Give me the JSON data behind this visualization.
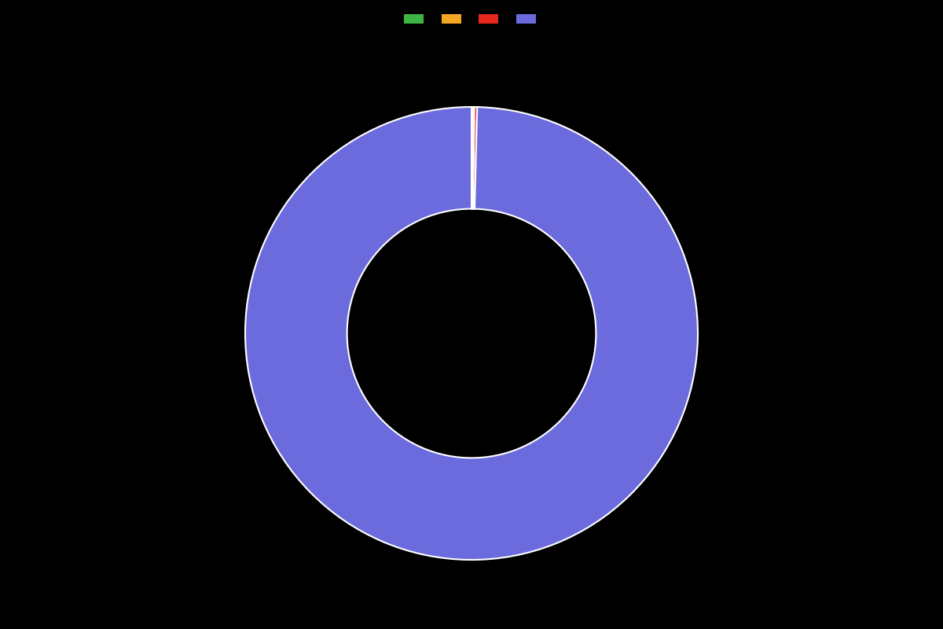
{
  "values": [
    0.1,
    0.1,
    0.2,
    99.6
  ],
  "colors": [
    "#3cb542",
    "#f5a623",
    "#e8281e",
    "#6b6bdd"
  ],
  "legend_labels": [
    "",
    "",
    "",
    ""
  ],
  "background_color": "#000000",
  "wedge_edge_color": "#ffffff",
  "donut_width": 0.45,
  "start_angle": 90,
  "figsize": [
    12.0,
    8.0
  ],
  "dpi": 100
}
